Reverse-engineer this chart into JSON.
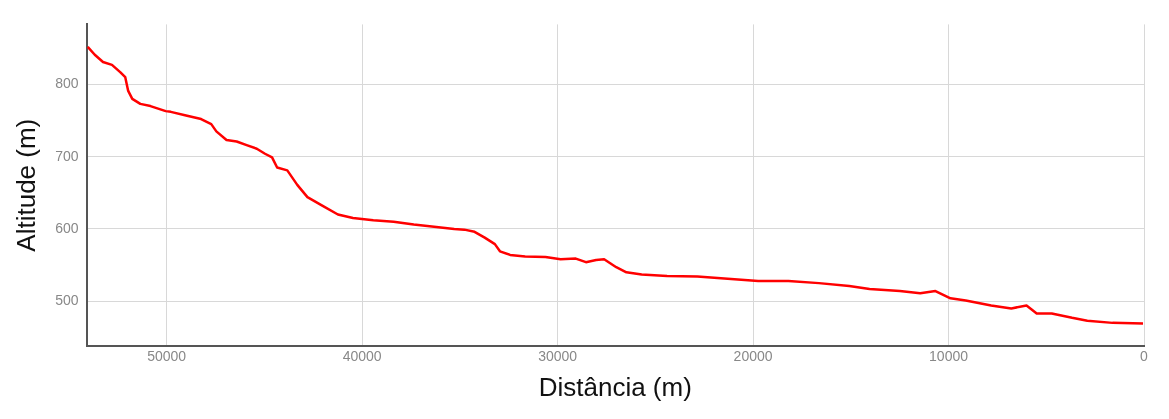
{
  "chart_data": {
    "type": "line",
    "xlabel": "Distância (m)",
    "ylabel": "Altitude (m)",
    "xlim": [
      54100,
      0
    ],
    "xticks": [
      50000,
      40000,
      30000,
      20000,
      10000,
      0
    ],
    "ylim": [
      438,
      883
    ],
    "yticks": [
      500,
      600,
      700,
      800
    ],
    "grid": true,
    "legend": false,
    "marker": "none",
    "line_style": "solid",
    "series": [
      {
        "color": "#ff0000",
        "x": [
          54040,
          53680,
          53260,
          52800,
          52380,
          52120,
          51970,
          51760,
          51350,
          50830,
          50050,
          49790,
          49010,
          48240,
          47720,
          47460,
          46940,
          46420,
          45910,
          45390,
          44970,
          44610,
          44350,
          43830,
          43320,
          42800,
          42020,
          41240,
          40470,
          39430,
          38390,
          37360,
          36320,
          35290,
          34770,
          34250,
          33730,
          33210,
          32950,
          32430,
          31660,
          30620,
          29850,
          29070,
          28550,
          28030,
          27620,
          27000,
          26480,
          25700,
          24400,
          22850,
          21300,
          19740,
          18190,
          16630,
          15080,
          14040,
          12490,
          11450,
          10670,
          9900,
          9120,
          7820,
          6790,
          6010,
          5490,
          4720,
          3680,
          2900,
          1610,
          50
        ],
        "values": [
          852,
          841,
          831,
          827,
          817,
          810,
          791,
          780,
          773,
          770,
          763,
          762,
          757,
          752,
          745,
          735,
          723,
          721,
          716,
          711,
          704,
          699,
          685,
          681,
          661,
          644,
          632,
          620,
          615,
          612,
          610,
          606,
          603,
          600,
          599,
          596,
          588,
          579,
          569,
          564,
          562,
          561,
          558,
          559,
          554,
          557,
          558,
          547,
          540,
          537,
          535,
          534,
          531,
          528,
          528,
          525,
          521,
          517,
          514,
          511,
          514,
          504,
          501,
          494,
          490,
          494,
          483,
          483,
          477,
          473,
          470,
          469
        ]
      }
    ]
  }
}
